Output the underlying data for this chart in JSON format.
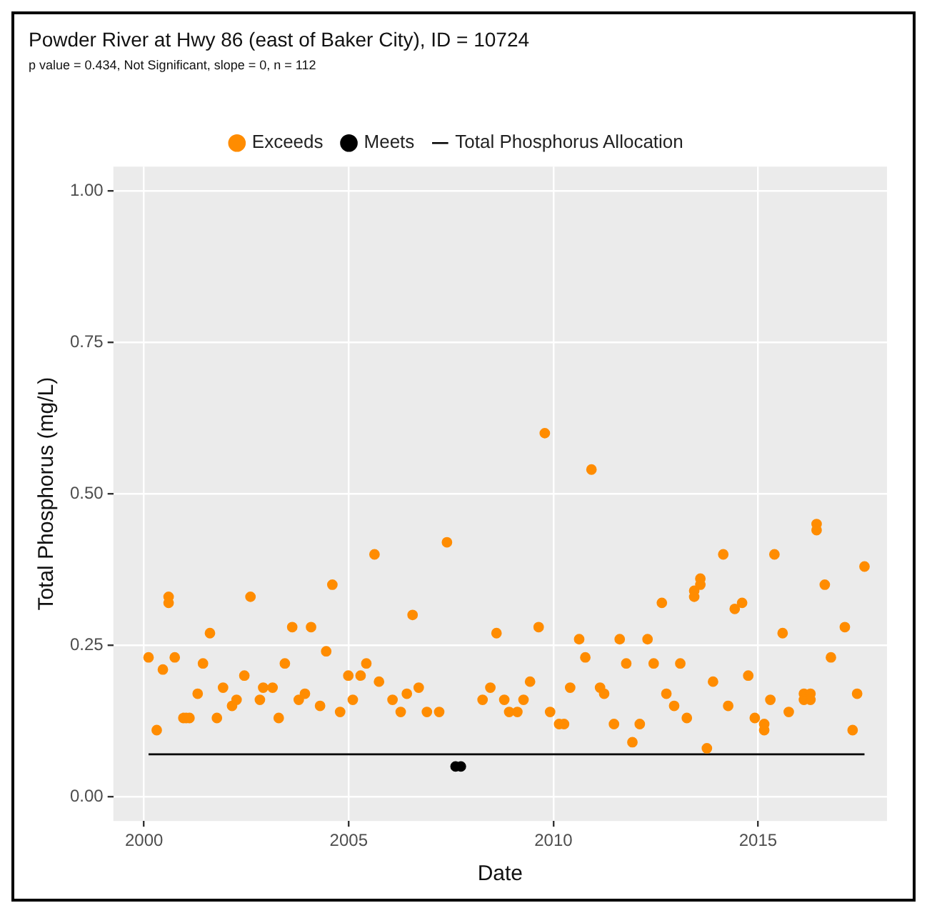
{
  "chart_data": {
    "type": "scatter",
    "title": "Powder River at Hwy 86 (east of Baker City), ID = 10724",
    "subtitle": "p value = 0.434, Not Significant, slope = 0, n = 112",
    "xlabel": "Date",
    "ylabel": "Total Phosphorus (mg/L)",
    "xlim": [
      1999.25,
      2018.15
    ],
    "xticks": [
      2000,
      2005,
      2010,
      2015
    ],
    "ylim": [
      -0.04,
      1.04
    ],
    "yticks": [
      {
        "value": 0,
        "label": "0.00"
      },
      0.25,
      {
        "value": 0.5,
        "label": "0.50"
      },
      0.75,
      {
        "value": 1,
        "label": "1.00"
      }
    ],
    "grid": true,
    "legend": "top",
    "marker": "circle",
    "series": [
      {
        "name": "Exceeds",
        "color": "#ff8c00",
        "x": [
          2000.11,
          2000.31,
          2000.46,
          2000.6,
          2000.6,
          2000.75,
          2000.96,
          2001.03,
          2001.11,
          2001.31,
          2001.44,
          2001.61,
          2001.78,
          2001.93,
          2002.15,
          2002.26,
          2002.45,
          2002.6,
          2002.83,
          2002.91,
          2003.14,
          2003.29,
          2003.44,
          2003.62,
          2003.78,
          2003.93,
          2004.08,
          2004.3,
          2004.45,
          2004.6,
          2004.79,
          2004.99,
          2005.1,
          2005.29,
          2005.43,
          2005.63,
          2005.74,
          2006.07,
          2006.27,
          2006.42,
          2006.56,
          2006.71,
          2006.91,
          2007.21,
          2007.4,
          2008.27,
          2008.46,
          2008.61,
          2008.8,
          2008.92,
          2009.12,
          2009.27,
          2009.43,
          2009.64,
          2009.79,
          2009.92,
          2010.14,
          2010.26,
          2010.41,
          2010.63,
          2010.78,
          2010.93,
          2011.14,
          2011.24,
          2011.48,
          2011.62,
          2011.78,
          2011.93,
          2012.11,
          2012.3,
          2012.45,
          2012.65,
          2012.76,
          2012.95,
          2013.1,
          2013.26,
          2013.44,
          2013.44,
          2013.59,
          2013.59,
          2013.75,
          2013.9,
          2014.15,
          2014.27,
          2014.43,
          2014.61,
          2014.76,
          2014.92,
          2015.15,
          2015.15,
          2015.3,
          2015.4,
          2015.6,
          2015.75,
          2016.12,
          2016.12,
          2016.28,
          2016.28,
          2016.43,
          2016.43,
          2016.63,
          2016.78,
          2017.12,
          2017.31,
          2017.42,
          2017.6
        ],
        "values": [
          0.23,
          0.11,
          0.21,
          0.33,
          0.32,
          0.23,
          0.13,
          0.13,
          0.13,
          0.17,
          0.22,
          0.27,
          0.13,
          0.18,
          0.15,
          0.16,
          0.2,
          0.33,
          0.16,
          0.18,
          0.18,
          0.13,
          0.22,
          0.28,
          0.16,
          0.17,
          0.28,
          0.15,
          0.24,
          0.35,
          0.14,
          0.2,
          0.16,
          0.2,
          0.22,
          0.4,
          0.19,
          0.16,
          0.14,
          0.17,
          0.3,
          0.18,
          0.14,
          0.14,
          0.42,
          0.16,
          0.18,
          0.27,
          0.16,
          0.14,
          0.14,
          0.16,
          0.19,
          0.28,
          0.6,
          0.14,
          0.12,
          0.12,
          0.18,
          0.26,
          0.23,
          0.54,
          0.18,
          0.17,
          0.12,
          0.26,
          0.22,
          0.09,
          0.12,
          0.26,
          0.22,
          0.32,
          0.17,
          0.15,
          0.22,
          0.13,
          0.33,
          0.34,
          0.35,
          0.36,
          0.08,
          0.19,
          0.4,
          0.15,
          0.31,
          0.32,
          0.2,
          0.13,
          0.12,
          0.11,
          0.16,
          0.4,
          0.27,
          0.14,
          0.17,
          0.16,
          0.17,
          0.16,
          0.45,
          0.44,
          0.35,
          0.23,
          0.28,
          0.11,
          0.17,
          0.38
        ]
      },
      {
        "name": "Meets",
        "color": "#000000",
        "x": [
          2007.61,
          2007.74
        ],
        "values": [
          0.05,
          0.05
        ]
      },
      {
        "name": "Total Phosphorus Allocation",
        "color": "#000000",
        "type": "line",
        "marker": "none",
        "x": [
          2000.11,
          2017.6
        ],
        "values": [
          0.07,
          0.07
        ]
      }
    ]
  }
}
